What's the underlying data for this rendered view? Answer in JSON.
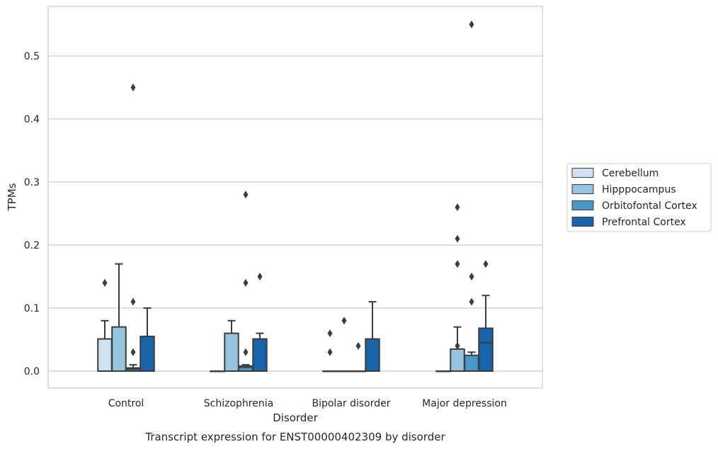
{
  "chart_data": {
    "type": "boxplot",
    "caption": "Transcript expression for ENST00000402309 by disorder",
    "xlabel": "Disorder",
    "ylabel": "TPMs",
    "ylim": [
      -0.028,
      0.58
    ],
    "yticks": [
      0.0,
      0.1,
      0.2,
      0.3,
      0.4,
      0.5
    ],
    "ytick_labels": [
      "0.0",
      "0.1",
      "0.2",
      "0.3",
      "0.4",
      "0.5"
    ],
    "grid": "horizontal",
    "legend_position": "right",
    "categories": [
      "Control",
      "Schizophrenia",
      "Bipolar disorder",
      "Major depression"
    ],
    "series": [
      {
        "name": "Cerebellum",
        "color": "#d0e1f2",
        "boxes": [
          {
            "q1": 0.0,
            "median": 0.0,
            "q3": 0.051,
            "whisker_low": 0.0,
            "whisker_high": 0.08,
            "outliers": [
              0.14
            ]
          },
          {
            "q1": 0.0,
            "median": 0.0,
            "q3": 0.0,
            "whisker_low": 0.0,
            "whisker_high": 0.0,
            "outliers": []
          },
          {
            "q1": 0.0,
            "median": 0.0,
            "q3": 0.0,
            "whisker_low": 0.0,
            "whisker_high": 0.0,
            "outliers": [
              0.03,
              0.06
            ]
          },
          {
            "q1": 0.0,
            "median": 0.0,
            "q3": 0.0,
            "whisker_low": 0.0,
            "whisker_high": 0.0,
            "outliers": []
          }
        ]
      },
      {
        "name": "Hipppocampus",
        "color": "#94c4df",
        "boxes": [
          {
            "q1": 0.0,
            "median": 0.0,
            "q3": 0.07,
            "whisker_low": 0.0,
            "whisker_high": 0.17,
            "outliers": []
          },
          {
            "q1": 0.0,
            "median": 0.0,
            "q3": 0.06,
            "whisker_low": 0.0,
            "whisker_high": 0.08,
            "outliers": []
          },
          {
            "q1": 0.0,
            "median": 0.0,
            "q3": 0.0,
            "whisker_low": 0.0,
            "whisker_high": 0.0,
            "outliers": [
              0.08
            ]
          },
          {
            "q1": 0.0,
            "median": 0.0,
            "q3": 0.035,
            "whisker_low": 0.0,
            "whisker_high": 0.07,
            "outliers": [
              0.04,
              0.17,
              0.21,
              0.26
            ]
          }
        ]
      },
      {
        "name": "Orbitofontal Cortex",
        "color": "#4a98c9",
        "boxes": [
          {
            "q1": 0.0,
            "median": 0.003,
            "q3": 0.005,
            "whisker_low": 0.0,
            "whisker_high": 0.01,
            "outliers": [
              0.03,
              0.11,
              0.45
            ]
          },
          {
            "q1": 0.0,
            "median": 0.006,
            "q3": 0.008,
            "whisker_low": 0.0,
            "whisker_high": 0.01,
            "outliers": [
              0.03,
              0.14,
              0.28
            ]
          },
          {
            "q1": 0.0,
            "median": 0.0,
            "q3": 0.0,
            "whisker_low": 0.0,
            "whisker_high": 0.0,
            "outliers": [
              0.04
            ]
          },
          {
            "q1": 0.0,
            "median": 0.0,
            "q3": 0.025,
            "whisker_low": 0.0,
            "whisker_high": 0.03,
            "outliers": [
              0.11,
              0.15,
              0.55
            ]
          }
        ]
      },
      {
        "name": "Prefrontal Cortex",
        "color": "#1764ab",
        "boxes": [
          {
            "q1": 0.0,
            "median": 0.0,
            "q3": 0.055,
            "whisker_low": 0.0,
            "whisker_high": 0.1,
            "outliers": []
          },
          {
            "q1": 0.0,
            "median": 0.0,
            "q3": 0.051,
            "whisker_low": 0.0,
            "whisker_high": 0.06,
            "outliers": [
              0.15
            ]
          },
          {
            "q1": 0.0,
            "median": 0.0,
            "q3": 0.051,
            "whisker_low": 0.0,
            "whisker_high": 0.11,
            "outliers": []
          },
          {
            "q1": 0.0,
            "median": 0.045,
            "q3": 0.068,
            "whisker_low": 0.0,
            "whisker_high": 0.12,
            "outliers": [
              0.17
            ]
          }
        ]
      }
    ]
  }
}
